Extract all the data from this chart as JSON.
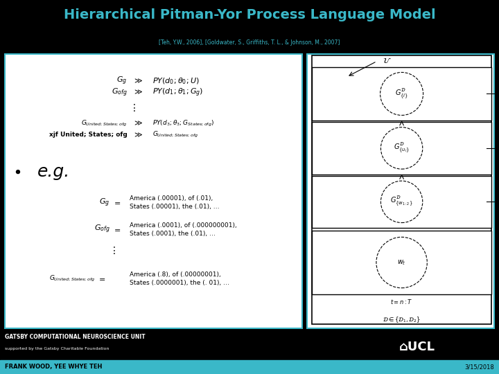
{
  "title": "Hierarchical Pitman-Yor Process Language Model",
  "subtitle": "[Teh, Y.W., 2006], [Goldwater, S., Griffiths, T. L., & Johnson, M., 2007]",
  "title_color": "#3ab8c8",
  "subtitle_color": "#3ab8c8",
  "bg_color": "#000000",
  "panel_border": "#3ab8c8",
  "footer_bar_color": "#3ab8c8",
  "gatsby_line1": "GATSBY COMPUTATIONAL NEUROSCIENCE UNIT",
  "gatsby_line2": "supported by the Gatsby Charitable Foundation",
  "author_line": "FRANK WOOD, YEE WHYE TEH",
  "date_line": "3/15/2018"
}
